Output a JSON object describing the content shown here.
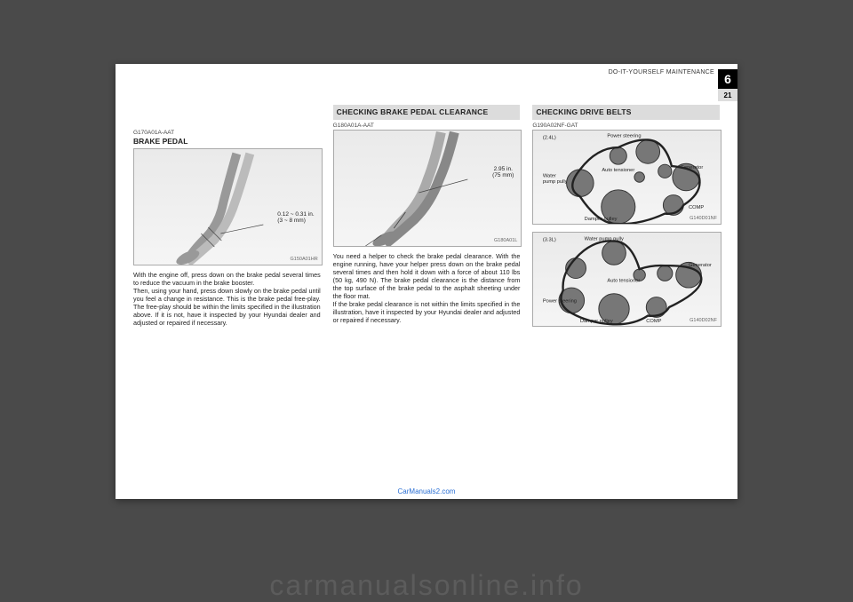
{
  "header": {
    "section_label": "DO-IT-YOURSELF MAINTENANCE",
    "chapter_number": "6",
    "page_number": "21"
  },
  "col1": {
    "code": "G170A01A-AAT",
    "subhead": "BRAKE PEDAL",
    "figure": {
      "callout": "0.12 ~ 0.31 in.\n(3 ~ 8 mm)",
      "caption": "G150A01HR"
    },
    "body": "With the engine off, press down on the brake pedal several times to reduce the vacuum in the brake booster.\nThen, using your hand, press down slowly on the brake pedal until you feel a change in resistance. This is the brake pedal free-play. The free-play should be within the limits specified in the illustration above. If it is not, have it inspected by your Hyundai dealer and adjusted or repaired if necessary."
  },
  "col2": {
    "title": "CHECKING BRAKE PEDAL CLEARANCE",
    "code": "G180A01A-AAT",
    "figure": {
      "callout": "2.95 in.\n(75 mm)",
      "caption": "G180A01L"
    },
    "body": "You need a helper to check the brake pedal clearance. With the engine running, have your helper press down on the brake pedal several times and then hold it down with a force of about 110 lbs (50 kg, 490 N). The brake pedal clearance is the distance from the top surface of the brake pedal to the asphalt sheeting under the floor mat.\nIf the brake pedal clearance is not within the limits specified in the illustration, have it inspected by your Hyundai dealer and adjusted or repaired if necessary."
  },
  "col3": {
    "title": "CHECKING DRIVE BELTS",
    "code": "G190A02NF-GAT",
    "diagram1": {
      "engine": "(2.4L)",
      "labels": {
        "power_steering": "Power steering",
        "auto_tensioner": "Auto tensioner",
        "generator": "Generator",
        "water_pump": "Water\npump pully",
        "damper": "Damper pulley",
        "comp": "COMP"
      },
      "caption": "G140D01NF"
    },
    "diagram2": {
      "engine": "(3.3L)",
      "labels": {
        "water_pump": "Water pump pully",
        "generator": "Generator",
        "auto_tensioner": "Auto tensioner",
        "power_steering": "Power steering",
        "damper": "Damper pulley",
        "comp": "COMP"
      },
      "caption": "G140D02NF"
    }
  },
  "footer_link": "CarManuals2.com",
  "watermark": "carmanualsonline.info"
}
